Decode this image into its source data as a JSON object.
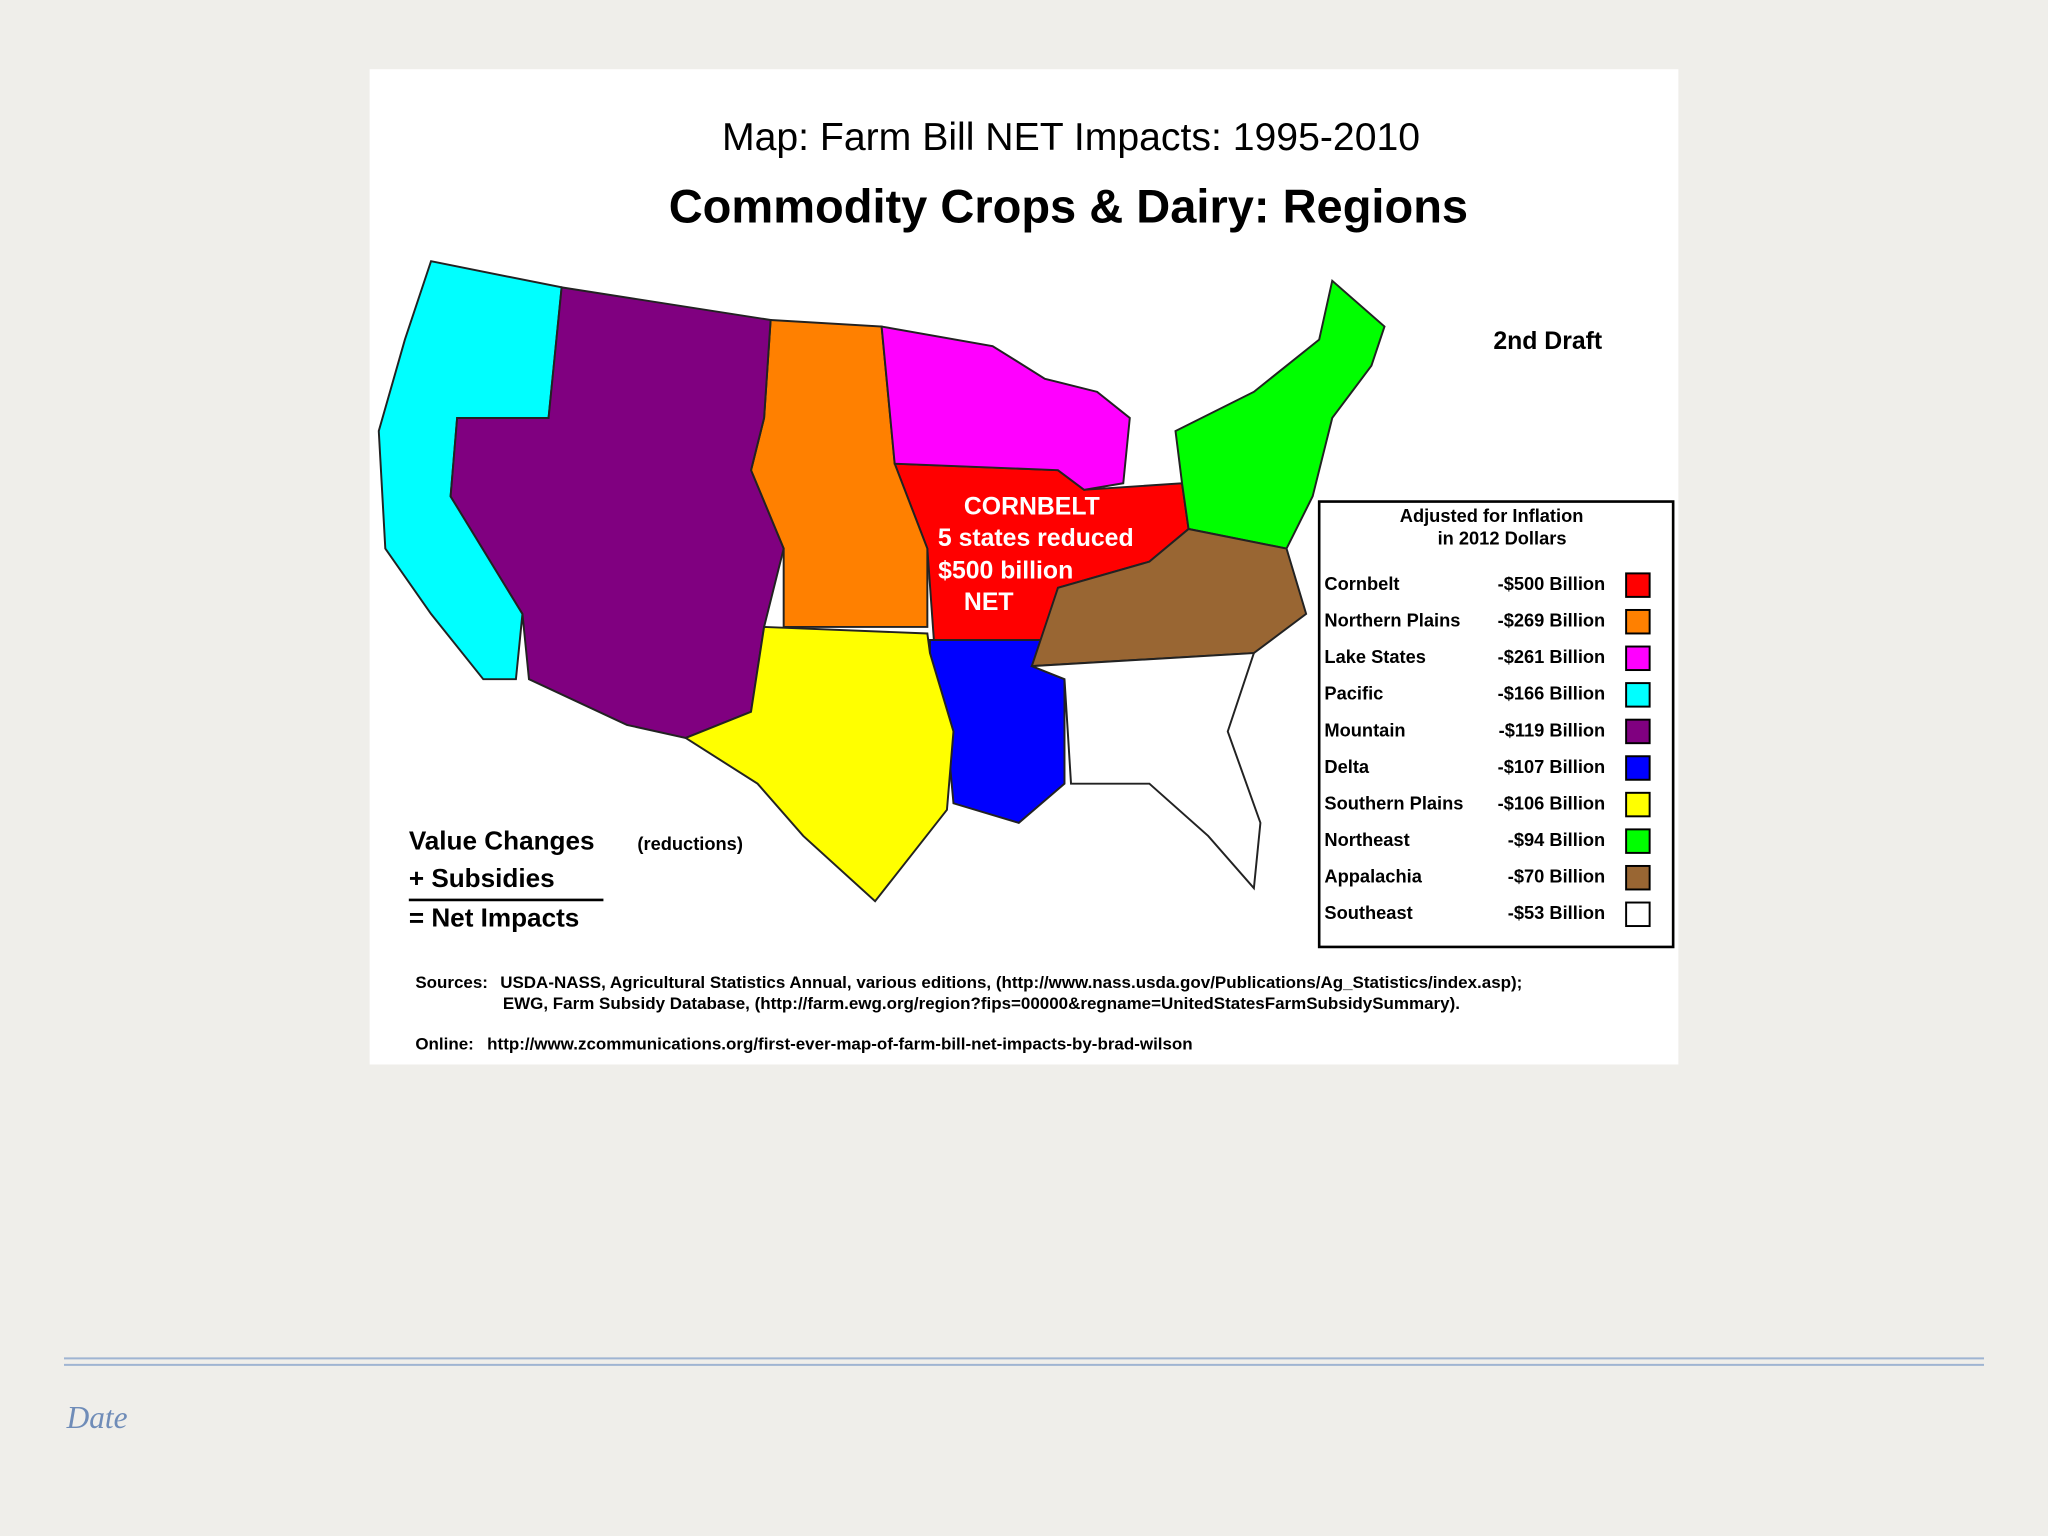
{
  "title": "Map: Farm Bill NET Impacts: 1995-2010",
  "subtitle": "Commodity Crops & Dairy: Regions",
  "draft": "2nd Draft",
  "cornbelt_note": [
    "CORNBELT",
    "5 states reduced",
    "$500 billion",
    "NET"
  ],
  "legend": {
    "title": [
      "Adjusted for Inflation",
      "in 2012 Dollars"
    ],
    "items": [
      {
        "name": "Cornbelt",
        "value": "-$500 Billion",
        "color": "#ff0000"
      },
      {
        "name": "Northern Plains",
        "value": "-$269 Billion",
        "color": "#ff8000"
      },
      {
        "name": "Lake States",
        "value": "-$261 Billion",
        "color": "#ff00ff"
      },
      {
        "name": "Pacific",
        "value": "-$166 Billion",
        "color": "#00ffff"
      },
      {
        "name": "Mountain",
        "value": "-$119 Billion",
        "color": "#800080"
      },
      {
        "name": "Delta",
        "value": "-$107 Billion",
        "color": "#0000ff"
      },
      {
        "name": "Southern Plains",
        "value": "-$106 Billion",
        "color": "#ffff00"
      },
      {
        "name": "Northeast",
        "value": "-$94 Billion",
        "color": "#00ff00"
      },
      {
        "name": "Appalachia",
        "value": "-$70 Billion",
        "color": "#996633"
      },
      {
        "name": "Southeast",
        "value": "-$53 Billion",
        "color": "#ffffff"
      }
    ]
  },
  "formula": {
    "line1": "Value Changes",
    "line1_note": "(reductions)",
    "line2": "+ Subsidies",
    "line3": "= Net Impacts"
  },
  "sources": [
    "Sources:",
    "USDA-NASS, Agricultural Statistics Annual, various editions, (http://www.nass.usda.gov/Publications/Ag_Statistics/index.asp);",
    "EWG, Farm Subsidy Database, (http://farm.ewg.org/region?fips=00000&regname=UnitedStatesFarmSubsidySummary)."
  ],
  "online": [
    "Online:",
    "http://www.zcommunications.org/first-ever-map-of-farm-bill-net-impacts-by-brad-wilson"
  ],
  "footer": "Date"
}
